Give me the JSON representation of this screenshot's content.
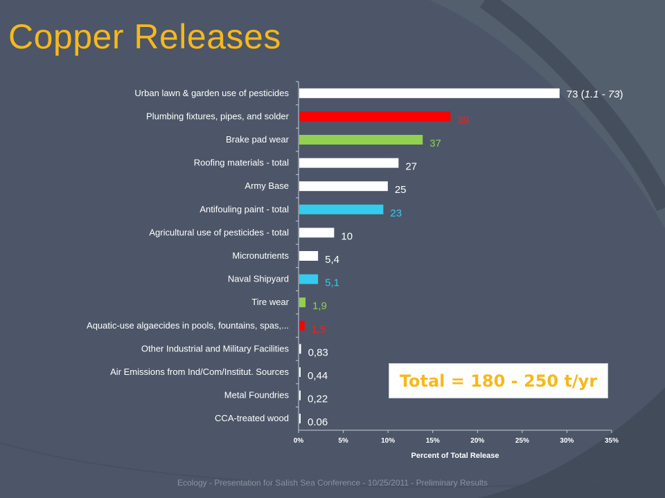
{
  "slide": {
    "title": "Copper Releases",
    "total_text": "Total  = 180 - 250 t/yr",
    "footer": "Ecology  -  Presentation for Salish Sea Conference  -  10/25/2011  -  Preliminary Results"
  },
  "chart_data": {
    "type": "bar",
    "orientation": "horizontal",
    "xlabel": "Percent of Total Release",
    "xlim": [
      0,
      35
    ],
    "x_ticks": [
      "0%",
      "5%",
      "10%",
      "15%",
      "20%",
      "25%",
      "30%",
      "35%"
    ],
    "grid": false,
    "categories": [
      "Urban lawn & garden use of pesticides",
      "Plumbing fixtures, pipes, and solder",
      "Brake pad wear",
      "Roofing materials - total",
      "Army Base",
      "Antifouling paint - total",
      "Agricultural use of pesticides - total",
      "Micronutrients",
      "Naval Shipyard",
      "Tire wear",
      "Aquatic-use algaecides in pools, fountains, spas,...",
      "Other Industrial and Military Facilities",
      "Air Emissions from Ind/Com/Institut. Sources",
      "Metal Foundries",
      "CCA-treated wood"
    ],
    "values": [
      29.1,
      16.9,
      13.8,
      11.1,
      9.9,
      9.4,
      3.9,
      2.1,
      2.1,
      0.7,
      0.6,
      0.2,
      0.15,
      0.05,
      0.02
    ],
    "data_labels": [
      "73 (1.1 - 73)",
      "39",
      "37",
      "27",
      "25",
      "23",
      "10",
      "5,4",
      "5,1",
      "1,9",
      "1,5",
      "0,83",
      "0,44",
      "0,22",
      "0.06"
    ],
    "colors": [
      "#ffffff",
      "#ff0000",
      "#92d050",
      "#ffffff",
      "#ffffff",
      "#33ccee",
      "#ffffff",
      "#ffffff",
      "#33ccee",
      "#92d050",
      "#ff0000",
      "#ffffff",
      "#ffffff",
      "#ffffff",
      "#ffffff"
    ],
    "label_colors": [
      "#ffffff",
      "#ff1a1a",
      "#92d050",
      "#ffffff",
      "#ffffff",
      "#33ccee",
      "#ffffff",
      "#ffffff",
      "#33ccee",
      "#92d050",
      "#ff1a1a",
      "#ffffff",
      "#ffffff",
      "#ffffff",
      "#ffffff"
    ]
  }
}
